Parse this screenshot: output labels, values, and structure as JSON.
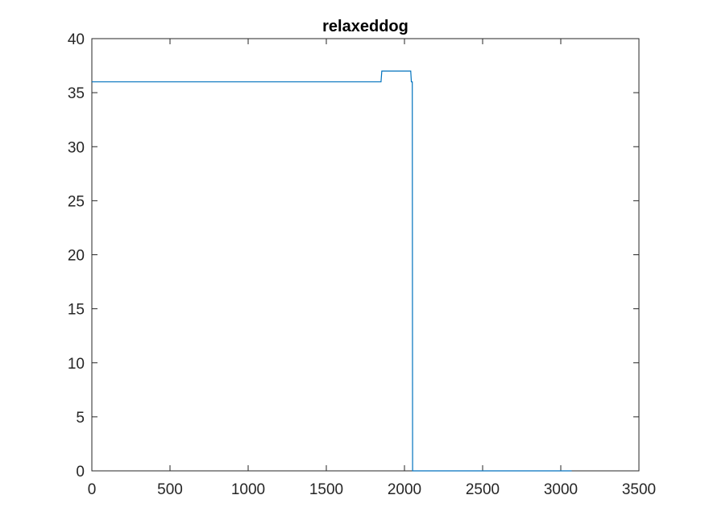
{
  "chart_data": {
    "type": "line",
    "title": "relaxeddog",
    "xlabel": "",
    "ylabel": "",
    "xlim": [
      0,
      3500
    ],
    "ylim": [
      0,
      40
    ],
    "xticks": [
      0,
      500,
      1000,
      1500,
      2000,
      2500,
      3000,
      3500
    ],
    "yticks": [
      0,
      5,
      10,
      15,
      20,
      25,
      30,
      35,
      40
    ],
    "xtick_labels": [
      "0",
      "500",
      "1000",
      "1500",
      "2000",
      "2500",
      "3000",
      "3500"
    ],
    "ytick_labels": [
      "0",
      "5",
      "10",
      "15",
      "20",
      "25",
      "30",
      "35",
      "40"
    ],
    "grid": false,
    "series": [
      {
        "name": "relaxeddog",
        "color": "#0072BD",
        "x": [
          0,
          1850,
          1855,
          2040,
          2044,
          2050,
          2052,
          2055,
          3070
        ],
        "y": [
          36,
          36,
          37,
          37,
          36,
          36,
          0,
          0,
          0
        ]
      }
    ]
  }
}
